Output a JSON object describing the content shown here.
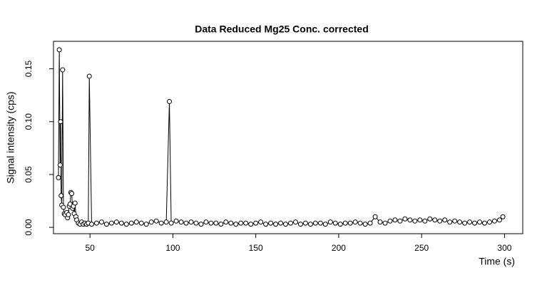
{
  "chart_data": {
    "type": "line",
    "title": "Data Reduced Mg25 Conc. corrected",
    "x_label": "Time (s)",
    "y_label": "Signal intensity (cps)",
    "xlim": [
      28,
      311
    ],
    "ylim": [
      -0.006,
      0.176
    ],
    "xticks": [
      50,
      100,
      150,
      200,
      250,
      300
    ],
    "yticks": [
      {
        "value": 0,
        "label": "0.00"
      },
      {
        "value": 0.05,
        "label": "0.05"
      },
      {
        "value": 0.1,
        "label": "0.10"
      },
      {
        "value": 0.15,
        "label": "0.15"
      }
    ],
    "color": "#000000",
    "x": [
      31,
      31.5,
      32,
      32.3,
      32.6,
      33,
      33.5,
      34,
      34.5,
      35,
      36,
      36.5,
      37,
      37.5,
      38,
      38.5,
      39,
      39.5,
      40,
      40.5,
      41,
      41.5,
      42,
      43,
      44,
      45,
      46,
      47,
      48,
      49,
      49.6,
      51,
      54,
      57,
      60,
      63,
      66,
      69,
      72,
      75,
      78,
      81,
      84,
      87,
      90,
      93,
      96,
      97.9,
      99,
      102,
      105,
      108,
      111,
      114,
      117,
      120,
      123,
      126,
      129,
      132,
      135,
      138,
      141,
      144,
      147,
      150,
      153,
      156,
      159,
      162,
      165,
      168,
      171,
      174,
      177,
      180,
      183,
      186,
      189,
      192,
      195,
      198,
      201,
      204,
      207,
      210,
      213,
      216,
      219,
      222,
      225,
      228,
      231,
      234,
      237,
      240,
      243,
      246,
      249,
      252,
      255,
      258,
      261,
      264,
      267,
      270,
      273,
      276,
      279,
      282,
      285,
      288,
      291,
      294,
      297,
      299
    ],
    "values": [
      0.047,
      0.168,
      0.059,
      0.1,
      0.03,
      0.021,
      0.149,
      0.019,
      0.013,
      0.012,
      0.014,
      0.009,
      0.012,
      0.02,
      0.022,
      0.033,
      0.032,
      0.018,
      0.02,
      0.013,
      0.023,
      0.01,
      0.007,
      0.004,
      0.003,
      0.005,
      0.003,
      0.004,
      0.003,
      0.004,
      0.143,
      0.003,
      0.004,
      0.005,
      0.003,
      0.004,
      0.005,
      0.004,
      0.003,
      0.004,
      0.005,
      0.004,
      0.003,
      0.005,
      0.006,
      0.004,
      0.005,
      0.119,
      0.004,
      0.006,
      0.005,
      0.004,
      0.005,
      0.004,
      0.003,
      0.005,
      0.004,
      0.004,
      0.003,
      0.005,
      0.004,
      0.003,
      0.004,
      0.004,
      0.003,
      0.004,
      0.005,
      0.003,
      0.004,
      0.003,
      0.004,
      0.003,
      0.004,
      0.005,
      0.003,
      0.004,
      0.003,
      0.004,
      0.004,
      0.003,
      0.005,
      0.004,
      0.003,
      0.004,
      0.004,
      0.005,
      0.004,
      0.003,
      0.004,
      0.01,
      0.005,
      0.004,
      0.006,
      0.007,
      0.006,
      0.008,
      0.007,
      0.006,
      0.007,
      0.006,
      0.008,
      0.007,
      0.006,
      0.007,
      0.005,
      0.006,
      0.005,
      0.004,
      0.005,
      0.004,
      0.005,
      0.004,
      0.005,
      0.006,
      0.007,
      0.01
    ]
  }
}
